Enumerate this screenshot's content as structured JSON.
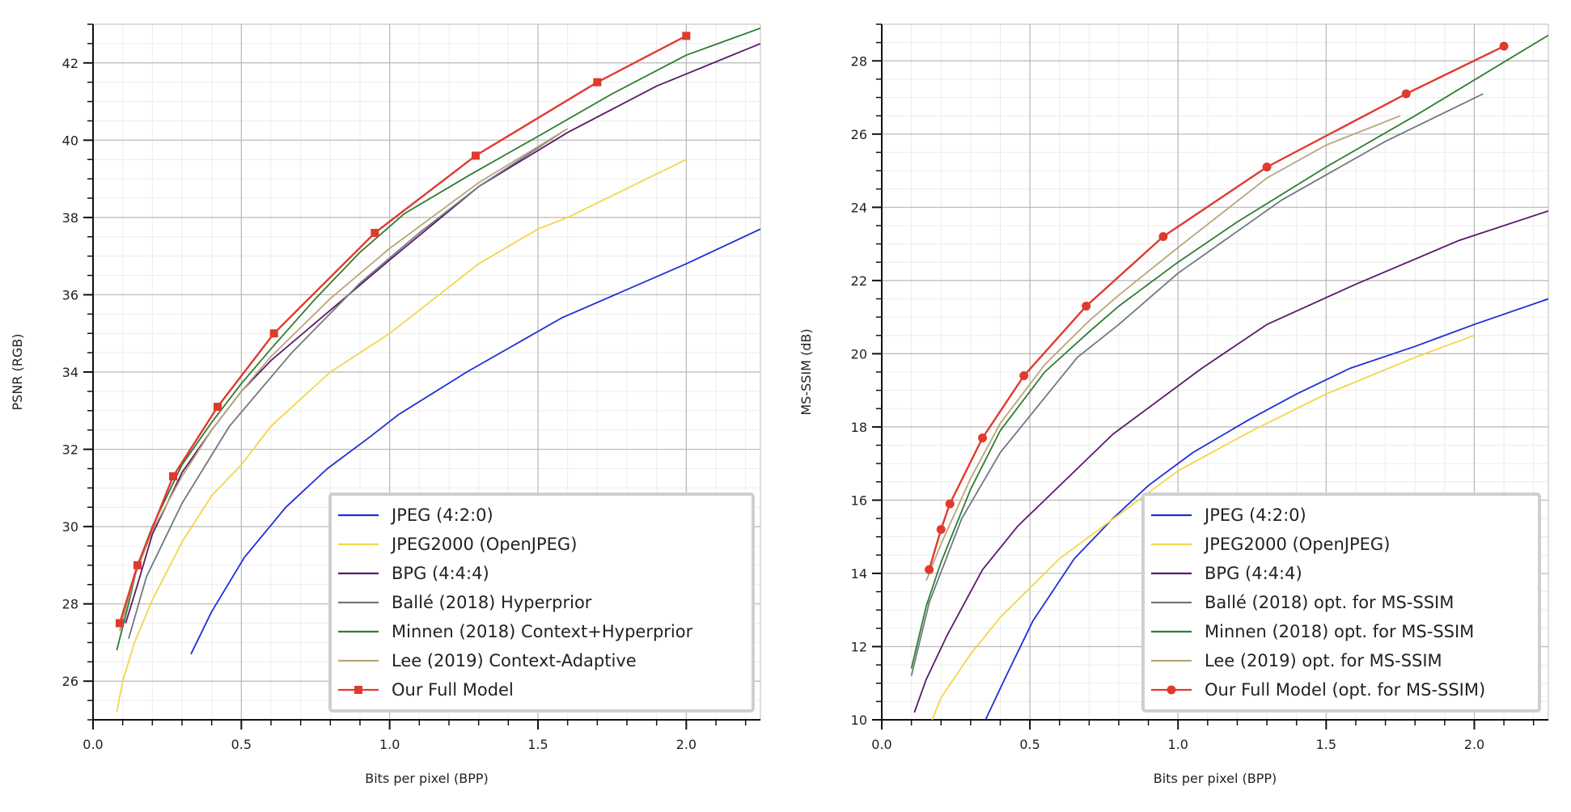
{
  "colors": {
    "jpeg": "#1f2fd6",
    "jpeg2000": "#f2d64b",
    "bpg": "#5a1a6b",
    "balle": "#707880",
    "minnen": "#2e7d32",
    "lee": "#b8a57a",
    "ours": "#e03a2e"
  },
  "chart_data": [
    {
      "type": "line",
      "xlabel": "Bits per pixel (BPP)",
      "ylabel": "PSNR (RGB)",
      "xlim": [
        0,
        2.25
      ],
      "ylim": [
        25,
        43
      ],
      "xticks": [
        "0.0",
        "0.5",
        "1.0",
        "1.5",
        "2.0"
      ],
      "xtick_values": [
        0,
        0.5,
        1.0,
        1.5,
        2.0
      ],
      "yticks": [
        "26",
        "28",
        "30",
        "32",
        "34",
        "36",
        "38",
        "40",
        "42"
      ],
      "ytick_values": [
        26,
        28,
        30,
        32,
        34,
        36,
        38,
        40,
        42
      ],
      "grid": true,
      "legend_position": "bottom-right",
      "series": [
        {
          "name": "JPEG (4:2:0)",
          "color_key": "jpeg",
          "marker": "none",
          "x": [
            0.33,
            0.4,
            0.51,
            0.65,
            0.79,
            0.93,
            1.03,
            1.26,
            1.58,
            2.0,
            2.25
          ],
          "y": [
            26.7,
            27.8,
            29.2,
            30.5,
            31.5,
            32.3,
            32.9,
            34.0,
            35.4,
            36.8,
            37.7
          ]
        },
        {
          "name": "JPEG2000 (OpenJPEG)",
          "color_key": "jpeg2000",
          "marker": "none",
          "x": [
            0.08,
            0.1,
            0.14,
            0.2,
            0.3,
            0.4,
            0.5,
            0.6,
            0.8,
            1.0,
            1.3,
            1.5,
            1.6,
            2.0
          ],
          "y": [
            25.2,
            26.0,
            27.0,
            28.1,
            29.6,
            30.8,
            31.6,
            32.6,
            34.0,
            35.0,
            36.8,
            37.7,
            38.0,
            39.5
          ]
        },
        {
          "name": "BPG (4:4:4)",
          "color_key": "bpg",
          "marker": "none",
          "x": [
            0.11,
            0.15,
            0.2,
            0.3,
            0.4,
            0.5,
            0.6,
            0.8,
            1.0,
            1.3,
            1.6,
            1.9,
            2.25
          ],
          "y": [
            27.5,
            28.5,
            29.8,
            31.4,
            32.5,
            33.5,
            34.3,
            35.6,
            36.9,
            38.8,
            40.2,
            41.4,
            42.5
          ]
        },
        {
          "name": "Ballé (2018) Hyperprior",
          "color_key": "balle",
          "marker": "none",
          "x": [
            0.12,
            0.18,
            0.3,
            0.46,
            0.67,
            0.9,
            1.1,
            1.3,
            1.58
          ],
          "y": [
            27.1,
            28.7,
            30.6,
            32.6,
            34.5,
            36.3,
            37.6,
            38.8,
            40.2
          ]
        },
        {
          "name": "Minnen (2018) Context+Hyperprior",
          "color_key": "minnen",
          "marker": "none",
          "x": [
            0.08,
            0.12,
            0.15,
            0.2,
            0.3,
            0.4,
            0.5,
            0.6,
            0.75,
            0.9,
            1.05,
            1.27,
            1.5,
            1.75,
            2.0,
            2.25
          ],
          "y": [
            26.8,
            28.0,
            29.0,
            30.0,
            31.6,
            32.7,
            33.7,
            34.6,
            35.9,
            37.1,
            38.1,
            39.1,
            40.1,
            41.2,
            42.2,
            42.9
          ]
        },
        {
          "name": "Lee (2019) Context-Adaptive",
          "color_key": "lee",
          "marker": "none",
          "x": [
            0.09,
            0.14,
            0.2,
            0.3,
            0.4,
            0.5,
            0.6,
            0.8,
            1.0,
            1.3,
            1.6
          ],
          "y": [
            27.3,
            28.7,
            29.9,
            31.3,
            32.5,
            33.5,
            34.4,
            35.9,
            37.2,
            38.9,
            40.3
          ]
        },
        {
          "name": "Our Full Model",
          "color_key": "ours",
          "marker": "square",
          "x": [
            0.09,
            0.15,
            0.27,
            0.42,
            0.61,
            0.95,
            1.29,
            1.7,
            2.0
          ],
          "y": [
            27.5,
            29.0,
            31.3,
            33.1,
            35.0,
            37.6,
            39.6,
            41.5,
            42.7
          ]
        }
      ]
    },
    {
      "type": "line",
      "xlabel": "Bits per pixel (BPP)",
      "ylabel": "MS-SSIM (dB)",
      "xlim": [
        0,
        2.25
      ],
      "ylim": [
        10,
        29
      ],
      "xticks": [
        "0.0",
        "0.5",
        "1.0",
        "1.5",
        "2.0"
      ],
      "xtick_values": [
        0,
        0.5,
        1.0,
        1.5,
        2.0
      ],
      "yticks": [
        "10",
        "12",
        "14",
        "16",
        "18",
        "20",
        "22",
        "24",
        "26",
        "28"
      ],
      "ytick_values": [
        10,
        12,
        14,
        16,
        18,
        20,
        22,
        24,
        26,
        28
      ],
      "grid": true,
      "legend_position": "bottom-right",
      "series": [
        {
          "name": "JPEG (4:2:0)",
          "color_key": "jpeg",
          "marker": "none",
          "x": [
            0.35,
            0.42,
            0.51,
            0.65,
            0.78,
            0.9,
            1.05,
            1.24,
            1.4,
            1.58,
            1.8,
            2.0,
            2.25
          ],
          "y": [
            10.0,
            11.2,
            12.7,
            14.4,
            15.5,
            16.4,
            17.3,
            18.2,
            18.9,
            19.6,
            20.2,
            20.8,
            21.5
          ]
        },
        {
          "name": "JPEG2000 (OpenJPEG)",
          "color_key": "jpeg2000",
          "marker": "none",
          "x": [
            0.17,
            0.2,
            0.3,
            0.4,
            0.5,
            0.6,
            0.8,
            1.0,
            1.25,
            1.5,
            1.8,
            2.0
          ],
          "y": [
            10.0,
            10.6,
            11.8,
            12.8,
            13.6,
            14.4,
            15.6,
            16.8,
            17.9,
            18.9,
            19.9,
            20.5
          ]
        },
        {
          "name": "BPG (4:4:4)",
          "color_key": "bpg",
          "marker": "none",
          "x": [
            0.11,
            0.15,
            0.22,
            0.34,
            0.46,
            0.55,
            0.78,
            1.08,
            1.3,
            1.6,
            1.95,
            2.25
          ],
          "y": [
            10.2,
            11.1,
            12.3,
            14.1,
            15.3,
            16.0,
            17.8,
            19.6,
            20.8,
            21.9,
            23.1,
            23.9
          ]
        },
        {
          "name": "Ballé (2018) opt. for MS-SSIM",
          "color_key": "balle",
          "marker": "none",
          "x": [
            0.1,
            0.16,
            0.27,
            0.4,
            0.53,
            0.66,
            0.8,
            1.0,
            1.35,
            1.7,
            2.03
          ],
          "y": [
            11.2,
            13.2,
            15.5,
            17.3,
            18.6,
            19.9,
            20.8,
            22.2,
            24.2,
            25.8,
            27.1
          ]
        },
        {
          "name": "Minnen (2018) opt. for MS-SSIM",
          "color_key": "minnen",
          "marker": "none",
          "x": [
            0.1,
            0.15,
            0.2,
            0.3,
            0.4,
            0.55,
            0.7,
            0.8,
            1.0,
            1.2,
            1.5,
            1.8,
            2.25
          ],
          "y": [
            11.4,
            13.1,
            14.3,
            16.3,
            17.9,
            19.5,
            20.6,
            21.3,
            22.5,
            23.6,
            25.1,
            26.5,
            28.7
          ]
        },
        {
          "name": "Lee (2019) opt. for MS-SSIM",
          "color_key": "lee",
          "marker": "none",
          "x": [
            0.15,
            0.2,
            0.3,
            0.4,
            0.55,
            0.7,
            0.8,
            1.0,
            1.3,
            1.5,
            1.75
          ],
          "y": [
            13.8,
            14.8,
            16.6,
            18.1,
            19.7,
            20.9,
            21.6,
            22.9,
            24.8,
            25.7,
            26.5
          ]
        },
        {
          "name": "Our Full Model (opt. for MS-SSIM)",
          "color_key": "ours",
          "marker": "circle",
          "x": [
            0.16,
            0.2,
            0.23,
            0.34,
            0.48,
            0.69,
            0.95,
            1.3,
            1.77,
            2.1
          ],
          "y": [
            14.1,
            15.2,
            15.9,
            17.7,
            19.4,
            21.3,
            23.2,
            25.1,
            27.1,
            28.4
          ]
        }
      ]
    }
  ]
}
